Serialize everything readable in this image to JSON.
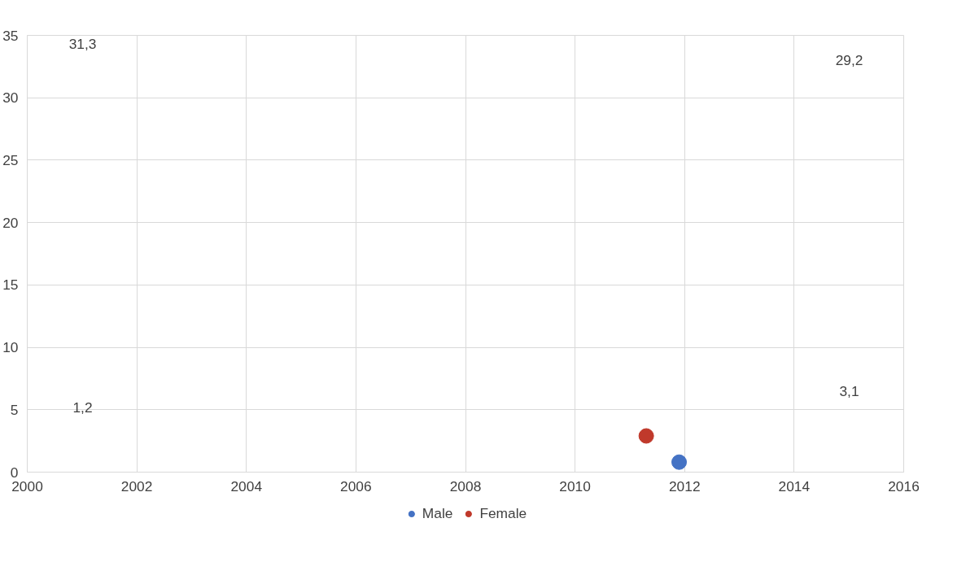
{
  "chart_data": {
    "type": "scatter",
    "xlim": [
      2000,
      2016
    ],
    "ylim": [
      0,
      35
    ],
    "xticks": [
      2000,
      2002,
      2004,
      2006,
      2008,
      2010,
      2012,
      2014,
      2016
    ],
    "yticks": [
      0,
      5,
      10,
      15,
      20,
      25,
      30,
      35
    ],
    "grid": true,
    "legend": "bottom",
    "marker": "circle",
    "series": [
      {
        "name": "Male",
        "color": "#4472c4",
        "x": [
          2011.9
        ],
        "values": [
          0.8
        ]
      },
      {
        "name": "Female",
        "color": "#c0392b",
        "x": [
          2011.3
        ],
        "values": [
          2.9
        ]
      }
    ],
    "annotations": [
      "31,3",
      "1,2",
      "29,2",
      "3,1"
    ]
  }
}
